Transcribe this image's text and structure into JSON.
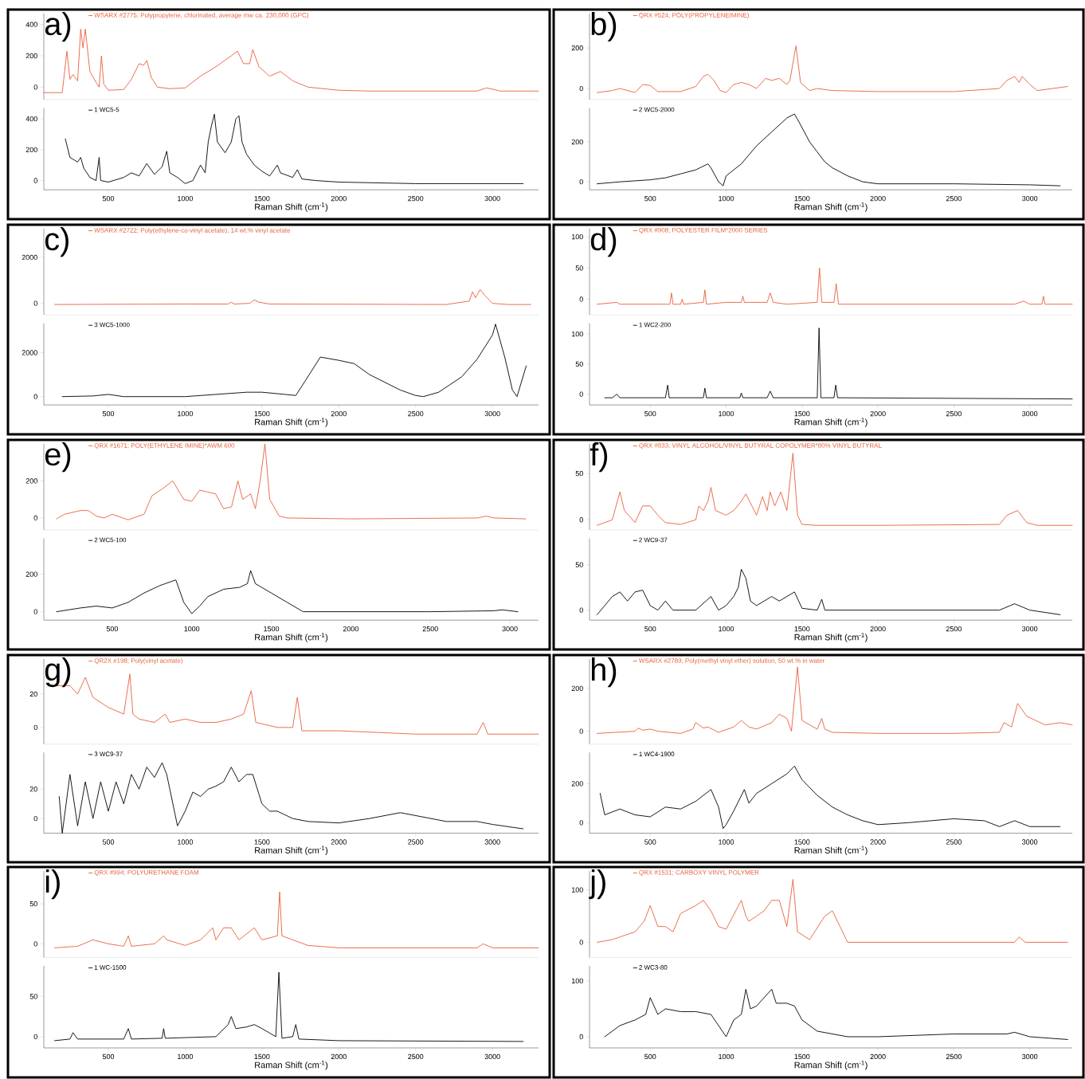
{
  "chart_data": [
    {
      "type": "line",
      "annotations": [
        "a)"
      ],
      "legend": "top left",
      "tick_labels": "y",
      "xlim": [
        80,
        3300
      ],
      "ylim": [
        -80,
        470
      ],
      "yticks": [
        0,
        200,
        400
      ],
      "x": [
        80,
        200,
        230,
        250,
        270,
        300,
        320,
        335,
        350,
        380,
        420,
        440,
        455,
        470,
        500,
        600,
        650,
        700,
        730,
        750,
        780,
        820,
        900,
        1000,
        1100,
        1200,
        1300,
        1340,
        1380,
        1420,
        1440,
        1480,
        1550,
        1620,
        1700,
        1800,
        2000,
        2200,
        2500,
        2900,
        2960,
        3010,
        3050,
        3300
      ],
      "series": [
        {
          "name": "WSARX #2775; Polypropylene, chlorinated, average mw ca. 230,000 (GPC)",
          "color": "#e8603c",
          "values": [
            -35,
            -35,
            230,
            50,
            80,
            40,
            370,
            250,
            370,
            100,
            30,
            0,
            200,
            20,
            -20,
            -15,
            50,
            150,
            140,
            170,
            60,
            0,
            -10,
            -5,
            70,
            130,
            200,
            230,
            150,
            150,
            240,
            130,
            70,
            100,
            40,
            0,
            -20,
            -25,
            -25,
            -25,
            -5,
            -15,
            -25,
            -25
          ]
        }
      ]
    },
    {
      "type": "line",
      "legend": "top left",
      "xlabel": "Raman Shift (cm$^{-1}$)",
      "xlim": [
        80,
        3300
      ],
      "xticks": [
        500,
        1000,
        1500,
        2000,
        2500,
        3000
      ],
      "ylim": [
        -60,
        470
      ],
      "yticks": [
        0,
        200,
        400
      ],
      "x": [
        220,
        250,
        300,
        320,
        340,
        380,
        420,
        440,
        450,
        500,
        600,
        650,
        700,
        750,
        800,
        850,
        880,
        900,
        950,
        1000,
        1050,
        1100,
        1130,
        1150,
        1170,
        1190,
        1210,
        1260,
        1300,
        1330,
        1350,
        1370,
        1400,
        1450,
        1500,
        1550,
        1600,
        1620,
        1700,
        1730,
        1760,
        1850,
        2000,
        2500,
        3000,
        3200
      ],
      "series": [
        {
          "name": "1 WC5-5",
          "color": "#000000",
          "values": [
            270,
            150,
            120,
            150,
            80,
            20,
            0,
            150,
            0,
            -10,
            20,
            50,
            30,
            110,
            40,
            90,
            190,
            50,
            20,
            -20,
            0,
            100,
            50,
            250,
            350,
            430,
            250,
            180,
            250,
            400,
            420,
            250,
            170,
            100,
            60,
            30,
            100,
            50,
            20,
            70,
            10,
            0,
            -10,
            -20,
            -20,
            -20
          ]
        }
      ]
    },
    {
      "type": "line",
      "annotations": [
        "b)"
      ],
      "legend": "top left",
      "tick_labels": "y",
      "xlim": [
        100,
        3280
      ],
      "ylim": [
        -55,
        370
      ],
      "yticks": [
        0,
        200
      ],
      "x": [
        150,
        250,
        300,
        400,
        450,
        500,
        550,
        700,
        800,
        850,
        880,
        920,
        960,
        1000,
        1050,
        1100,
        1150,
        1200,
        1260,
        1300,
        1350,
        1400,
        1420,
        1460,
        1490,
        1550,
        1600,
        1700,
        2000,
        2500,
        2800,
        2850,
        2900,
        2930,
        2950,
        3000,
        3050,
        3250
      ],
      "series": [
        {
          "name": "QRX #524; POLY(PROPYLENEIMINE)",
          "color": "#e8603c",
          "values": [
            -20,
            -10,
            0,
            -20,
            20,
            15,
            -15,
            -15,
            10,
            60,
            70,
            40,
            -10,
            -20,
            20,
            30,
            20,
            0,
            50,
            40,
            50,
            20,
            40,
            210,
            30,
            -10,
            0,
            -10,
            -15,
            -15,
            0,
            40,
            60,
            30,
            60,
            20,
            -10,
            10
          ]
        }
      ]
    },
    {
      "type": "line",
      "legend": "top left",
      "xlabel": "Raman Shift (cm$^{-1}$)",
      "xlim": [
        100,
        3280
      ],
      "xticks": [
        500,
        1000,
        1500,
        2000,
        2500,
        3000
      ],
      "ylim": [
        -40,
        370
      ],
      "yticks": [
        0,
        200
      ],
      "x": [
        150,
        300,
        500,
        600,
        700,
        800,
        880,
        900,
        950,
        980,
        1000,
        1100,
        1200,
        1300,
        1400,
        1450,
        1480,
        1550,
        1600,
        1650,
        1700,
        1800,
        1900,
        2000,
        2500,
        3000,
        3200
      ],
      "series": [
        {
          "name": "2 WC5-2000",
          "color": "#000000",
          "values": [
            -10,
            0,
            10,
            20,
            40,
            60,
            90,
            70,
            0,
            -20,
            30,
            90,
            180,
            250,
            320,
            340,
            300,
            200,
            150,
            100,
            70,
            30,
            0,
            -10,
            -10,
            -15,
            -20
          ]
        }
      ]
    },
    {
      "type": "line",
      "annotations": [
        "c)"
      ],
      "legend": "top left",
      "tick_labels": "y",
      "xlim": [
        80,
        3300
      ],
      "ylim": [
        -500,
        3250
      ],
      "yticks": [
        0,
        2000
      ],
      "x": [
        150,
        1000,
        1280,
        1300,
        1320,
        1420,
        1450,
        1480,
        1550,
        2700,
        2850,
        2870,
        2890,
        2920,
        2950,
        3000,
        3100,
        3250
      ],
      "series": [
        {
          "name": "WSARX #2722; Poly(ethylene-co-vinyl acetate), 14 wt.% vinyl acetate",
          "color": "#e8603c",
          "values": [
            -50,
            -30,
            -30,
            50,
            -30,
            0,
            150,
            50,
            -30,
            -50,
            100,
            500,
            250,
            600,
            350,
            0,
            -50,
            -50
          ]
        }
      ]
    },
    {
      "type": "line",
      "legend": "top left",
      "xlabel": "Raman Shift (cm$^{-1}$)",
      "xlim": [
        80,
        3300
      ],
      "xticks": [
        500,
        1000,
        1500,
        2000,
        2500,
        3000
      ],
      "ylim": [
        -380,
        3340
      ],
      "yticks": [
        0,
        2000
      ],
      "x": [
        200,
        400,
        500,
        600,
        1000,
        1200,
        1400,
        1500,
        1650,
        1720,
        1780,
        1880,
        2000,
        2100,
        2200,
        2400,
        2500,
        2550,
        2650,
        2800,
        2900,
        3000,
        3020,
        3080,
        3130,
        3160,
        3220
      ],
      "series": [
        {
          "name": "3 WC5-1000",
          "color": "#000000",
          "values": [
            0,
            30,
            100,
            0,
            0,
            100,
            200,
            200,
            100,
            50,
            700,
            1800,
            1650,
            1500,
            1000,
            300,
            50,
            0,
            200,
            900,
            1700,
            2800,
            3300,
            1800,
            300,
            0,
            1400
          ]
        }
      ]
    },
    {
      "type": "line",
      "annotations": [
        "d)"
      ],
      "legend": "top left",
      "tick_labels": "y",
      "xlim": [
        100,
        3280
      ],
      "ylim": [
        -25,
        113
      ],
      "yticks": [
        0,
        50,
        100
      ],
      "x": [
        150,
        280,
        300,
        630,
        640,
        650,
        700,
        710,
        720,
        850,
        860,
        870,
        1000,
        1100,
        1110,
        1120,
        1270,
        1290,
        1310,
        1400,
        1600,
        1615,
        1630,
        1710,
        1725,
        1740,
        2900,
        2960,
        3000,
        3080,
        3090,
        3100,
        3280
      ],
      "series": [
        {
          "name": "QRX #908; POLYESTER FILM*2000 SERIES",
          "color": "#e8603c",
          "values": [
            -8,
            -5,
            -8,
            -8,
            10,
            -8,
            -8,
            0,
            -8,
            -5,
            15,
            -8,
            -5,
            -5,
            5,
            -5,
            -5,
            10,
            -5,
            -8,
            -5,
            50,
            -5,
            -5,
            25,
            -8,
            -8,
            -3,
            -8,
            -8,
            5,
            -8,
            -8
          ]
        }
      ]
    },
    {
      "type": "line",
      "legend": "top left",
      "xlabel": "Raman Shift (cm$^{-1}$)",
      "xlim": [
        100,
        3280
      ],
      "xticks": [
        500,
        1000,
        1500,
        2000,
        2500,
        3000
      ],
      "ylim": [
        -18,
        118
      ],
      "yticks": [
        0,
        50,
        100
      ],
      "x": [
        200,
        250,
        280,
        300,
        600,
        615,
        625,
        850,
        860,
        870,
        1090,
        1100,
        1110,
        1270,
        1290,
        1310,
        1600,
        1612,
        1624,
        1710,
        1722,
        1734,
        3280
      ],
      "series": [
        {
          "name": "1 WC2-200",
          "color": "#000000",
          "values": [
            -6,
            -6,
            0,
            -6,
            -6,
            15,
            -6,
            -6,
            10,
            -6,
            -6,
            2,
            -6,
            -6,
            5,
            -6,
            -6,
            110,
            -6,
            -6,
            15,
            -6,
            -8
          ]
        }
      ]
    },
    {
      "type": "line",
      "annotations": [
        "e)"
      ],
      "legend": "top left",
      "tick_labels": "y",
      "xlim": [
        70,
        3180
      ],
      "ylim": [
        -65,
        400
      ],
      "yticks": [
        0,
        200
      ],
      "x": [
        150,
        200,
        300,
        350,
        400,
        450,
        500,
        600,
        700,
        750,
        820,
        880,
        950,
        1000,
        1050,
        1100,
        1150,
        1200,
        1250,
        1290,
        1320,
        1370,
        1400,
        1430,
        1460,
        1490,
        1550,
        1600,
        2000,
        2800,
        2850,
        2900,
        3100
      ],
      "series": [
        {
          "name": "QRX #1671; POLY(ETHYLENE IMINE)*AWM 600",
          "color": "#e8603c",
          "values": [
            -5,
            20,
            40,
            40,
            10,
            0,
            20,
            -10,
            20,
            120,
            160,
            200,
            100,
            90,
            150,
            140,
            130,
            50,
            60,
            200,
            100,
            130,
            50,
            200,
            400,
            100,
            10,
            0,
            -5,
            0,
            10,
            0,
            -5
          ]
        }
      ]
    },
    {
      "type": "line",
      "legend": "top left",
      "xlabel": "Raman Shift (cm$^{-1}$)",
      "xlim": [
        70,
        3180
      ],
      "xticks": [
        500,
        1000,
        1500,
        2000,
        2500,
        3000
      ],
      "ylim": [
        -45,
        392
      ],
      "yticks": [
        0,
        200
      ],
      "x": [
        150,
        300,
        400,
        500,
        600,
        700,
        800,
        900,
        950,
        1000,
        1050,
        1100,
        1200,
        1300,
        1350,
        1370,
        1400,
        1500,
        1600,
        1700,
        2000,
        2500,
        2900,
        2950,
        3050
      ],
      "series": [
        {
          "name": "2 WC5-100",
          "color": "#000000",
          "values": [
            0,
            20,
            30,
            20,
            50,
            100,
            140,
            170,
            50,
            -10,
            30,
            80,
            120,
            130,
            150,
            220,
            150,
            100,
            50,
            0,
            0,
            0,
            5,
            10,
            0
          ]
        }
      ]
    },
    {
      "type": "line",
      "annotations": [
        "f)"
      ],
      "legend": "top left",
      "tick_labels": "y",
      "xlim": [
        100,
        3280
      ],
      "ylim": [
        -11,
        82
      ],
      "yticks": [
        0,
        50
      ],
      "x": [
        150,
        250,
        300,
        330,
        400,
        450,
        500,
        550,
        600,
        700,
        800,
        820,
        850,
        880,
        900,
        930,
        1000,
        1050,
        1100,
        1130,
        1200,
        1240,
        1270,
        1290,
        1320,
        1360,
        1400,
        1440,
        1470,
        1500,
        1600,
        2000,
        2800,
        2850,
        2920,
        2980,
        3050,
        3280
      ],
      "series": [
        {
          "name": "QRX #833; VINYL ALCOHOL/VINYL BUTYRAL COPOLYMER*80% VINYL BUTYRAL",
          "color": "#e8603c",
          "values": [
            -6,
            0,
            30,
            10,
            -3,
            15,
            15,
            5,
            -3,
            -5,
            0,
            15,
            10,
            20,
            35,
            10,
            5,
            10,
            20,
            28,
            5,
            25,
            10,
            30,
            15,
            30,
            10,
            72,
            5,
            -5,
            -6,
            -6,
            -5,
            5,
            10,
            -3,
            -6,
            -6
          ]
        }
      ]
    },
    {
      "type": "line",
      "legend": "top left",
      "xlabel": "Raman Shift (cm$^{-1}$)",
      "xlim": [
        100,
        3280
      ],
      "xticks": [
        500,
        1000,
        1500,
        2000,
        2500,
        3000
      ],
      "ylim": [
        -11,
        79
      ],
      "yticks": [
        0,
        50
      ],
      "x": [
        150,
        200,
        250,
        300,
        350,
        400,
        450,
        500,
        550,
        600,
        650,
        800,
        900,
        950,
        1000,
        1050,
        1080,
        1100,
        1130,
        1160,
        1200,
        1250,
        1300,
        1350,
        1400,
        1450,
        1500,
        1600,
        1630,
        1650,
        2000,
        2800,
        2900,
        3000,
        3200
      ],
      "series": [
        {
          "name": "2 WC9-37",
          "color": "#000000",
          "values": [
            -5,
            5,
            15,
            20,
            10,
            20,
            22,
            5,
            0,
            10,
            0,
            0,
            15,
            0,
            5,
            15,
            25,
            45,
            35,
            10,
            5,
            10,
            15,
            10,
            15,
            20,
            2,
            0,
            12,
            0,
            0,
            0,
            7,
            0,
            -5
          ]
        }
      ]
    },
    {
      "type": "line",
      "annotations": [
        "g)"
      ],
      "legend": "top left",
      "tick_labels": "y",
      "xlim": [
        80,
        3300
      ],
      "ylim": [
        -10,
        41
      ],
      "yticks": [
        0,
        20
      ],
      "x": [
        160,
        250,
        300,
        350,
        400,
        500,
        600,
        620,
        640,
        660,
        700,
        800,
        870,
        900,
        1000,
        1100,
        1200,
        1300,
        1380,
        1430,
        1460,
        1600,
        1700,
        1730,
        1760,
        2000,
        2500,
        2900,
        2940,
        2970,
        3300
      ],
      "series": [
        {
          "name": "QR2X #198; Poly(vinyl acetate)",
          "color": "#e8603c",
          "values": [
            25,
            25,
            20,
            30,
            18,
            12,
            8,
            20,
            32,
            8,
            5,
            3,
            8,
            3,
            5,
            3,
            3,
            5,
            8,
            22,
            3,
            0,
            0,
            18,
            -2,
            -2,
            -4,
            -4,
            3,
            -4,
            -4
          ]
        }
      ]
    },
    {
      "type": "line",
      "legend": "top left",
      "xlabel": "Raman Shift (cm$^{-1}$)",
      "xlim": [
        80,
        3300
      ],
      "xticks": [
        500,
        1000,
        1500,
        2000,
        2500,
        3000
      ],
      "ylim": [
        -10,
        45
      ],
      "yticks": [
        0,
        20
      ],
      "x": [
        180,
        200,
        250,
        300,
        350,
        400,
        450,
        500,
        550,
        600,
        650,
        700,
        750,
        800,
        850,
        880,
        900,
        950,
        1000,
        1050,
        1100,
        1150,
        1200,
        1250,
        1300,
        1350,
        1400,
        1440,
        1500,
        1550,
        1600,
        1700,
        1800,
        2000,
        2200,
        2400,
        2500,
        2700,
        2900,
        3000,
        3200
      ],
      "series": [
        {
          "name": "3 WC9-37",
          "color": "#000000",
          "values": [
            15,
            -10,
            30,
            -5,
            25,
            0,
            25,
            5,
            25,
            10,
            30,
            20,
            35,
            28,
            38,
            30,
            20,
            -5,
            5,
            18,
            15,
            20,
            22,
            25,
            35,
            25,
            30,
            30,
            10,
            5,
            5,
            0,
            -2,
            -3,
            0,
            4,
            2,
            -2,
            -2,
            -4,
            -7
          ]
        }
      ]
    },
    {
      "type": "line",
      "annotations": [
        "h)"
      ],
      "legend": "top left",
      "tick_labels": "y",
      "xlim": [
        100,
        3280
      ],
      "ylim": [
        -60,
        337
      ],
      "yticks": [
        0,
        200
      ],
      "x": [
        150,
        400,
        420,
        450,
        500,
        550,
        700,
        780,
        800,
        850,
        880,
        950,
        1050,
        1100,
        1150,
        1200,
        1300,
        1350,
        1400,
        1430,
        1470,
        1500,
        1600,
        1630,
        1650,
        1700,
        2000,
        2500,
        2800,
        2830,
        2880,
        2920,
        2980,
        3100,
        3200,
        3280
      ],
      "series": [
        {
          "name": "WSARX #2789; Poly(methyl vinyl ether) solution, 50 wt.% in water",
          "color": "#e8603c",
          "values": [
            -10,
            0,
            15,
            5,
            10,
            0,
            -10,
            10,
            40,
            15,
            20,
            -5,
            20,
            50,
            20,
            10,
            40,
            80,
            60,
            0,
            300,
            50,
            10,
            60,
            10,
            -5,
            -10,
            -10,
            -5,
            40,
            20,
            130,
            70,
            30,
            40,
            30
          ]
        }
      ]
    },
    {
      "type": "line",
      "legend": "top left",
      "xlabel": "Raman Shift (cm$^{-1}$)",
      "xlim": [
        100,
        3280
      ],
      "xticks": [
        500,
        1000,
        1500,
        2000,
        2500,
        3000
      ],
      "ylim": [
        -54,
        360
      ],
      "yticks": [
        0,
        200
      ],
      "x": [
        170,
        200,
        300,
        400,
        500,
        600,
        700,
        800,
        850,
        900,
        950,
        980,
        1000,
        1050,
        1120,
        1150,
        1200,
        1300,
        1400,
        1450,
        1500,
        1600,
        1700,
        1800,
        1900,
        2000,
        2200,
        2500,
        2700,
        2800,
        2900,
        3000,
        3200
      ],
      "series": [
        {
          "name": "1 WC4-1900",
          "color": "#000000",
          "values": [
            150,
            40,
            70,
            40,
            30,
            80,
            70,
            110,
            140,
            170,
            80,
            -30,
            -10,
            60,
            170,
            100,
            150,
            200,
            250,
            290,
            220,
            140,
            80,
            40,
            10,
            -10,
            0,
            20,
            10,
            -20,
            10,
            -20,
            -20
          ]
        }
      ]
    },
    {
      "type": "line",
      "annotations": [
        "i)"
      ],
      "legend": "top left",
      "tick_labels": "y",
      "xlim": [
        80,
        3300
      ],
      "ylim": [
        -17,
        91
      ],
      "yticks": [
        0,
        50
      ],
      "x": [
        150,
        300,
        400,
        500,
        600,
        630,
        650,
        800,
        860,
        880,
        1000,
        1100,
        1180,
        1200,
        1250,
        1300,
        1350,
        1450,
        1500,
        1600,
        1615,
        1630,
        1700,
        1800,
        2000,
        2900,
        2940,
        3000,
        3300
      ],
      "series": [
        {
          "name": "QRX #994; POLYURETHANE FOAM",
          "color": "#e8603c",
          "values": [
            -5,
            -3,
            5,
            0,
            -3,
            10,
            -3,
            0,
            10,
            5,
            -2,
            5,
            20,
            5,
            20,
            20,
            5,
            20,
            5,
            10,
            65,
            10,
            5,
            -2,
            -5,
            -5,
            0,
            -5,
            -5
          ]
        }
      ]
    },
    {
      "type": "line",
      "legend": "top left",
      "xlabel": "Raman Shift (cm$^{-1}$)",
      "xlim": [
        80,
        3300
      ],
      "xticks": [
        500,
        1000,
        1500,
        2000,
        2500,
        3000
      ],
      "ylim": [
        -14,
        88
      ],
      "yticks": [
        0,
        50
      ],
      "x": [
        150,
        250,
        270,
        300,
        600,
        630,
        650,
        850,
        860,
        870,
        1200,
        1280,
        1300,
        1330,
        1400,
        1450,
        1500,
        1590,
        1610,
        1630,
        1700,
        1720,
        1740,
        2000,
        3200
      ],
      "series": [
        {
          "name": "1 WC-1500",
          "color": "#000000",
          "values": [
            -5,
            -3,
            5,
            -3,
            -3,
            10,
            -3,
            -2,
            10,
            -2,
            0,
            15,
            25,
            10,
            12,
            15,
            10,
            0,
            80,
            -2,
            0,
            15,
            -3,
            -5,
            -6
          ]
        }
      ]
    },
    {
      "type": "line",
      "annotations": [
        "j)"
      ],
      "legend": "top left",
      "tick_labels": "y",
      "xlim": [
        100,
        3280
      ],
      "ylim": [
        -29,
        136
      ],
      "yticks": [
        0,
        100
      ],
      "x": [
        150,
        250,
        300,
        400,
        460,
        500,
        550,
        600,
        650,
        700,
        800,
        850,
        900,
        950,
        1000,
        1100,
        1130,
        1150,
        1200,
        1250,
        1300,
        1350,
        1400,
        1440,
        1470,
        1550,
        1650,
        1700,
        1750,
        1800,
        2000,
        2900,
        2930,
        2970,
        3250
      ],
      "series": [
        {
          "name": "QRX #1531; CARBOXY VINYL POLYMER",
          "color": "#e8603c",
          "values": [
            0,
            5,
            10,
            20,
            40,
            70,
            30,
            30,
            20,
            55,
            70,
            80,
            60,
            30,
            25,
            80,
            50,
            40,
            50,
            60,
            80,
            80,
            30,
            120,
            20,
            5,
            50,
            60,
            30,
            0,
            0,
            0,
            10,
            0,
            0
          ]
        }
      ]
    },
    {
      "type": "line",
      "legend": "top left",
      "xlabel": "Raman Shift (cm$^{-1}$)",
      "xlim": [
        100,
        3280
      ],
      "xticks": [
        500,
        1000,
        1500,
        2000,
        2500,
        3000
      ],
      "ylim": [
        -20,
        127
      ],
      "yticks": [
        0,
        100
      ],
      "x": [
        200,
        300,
        400,
        470,
        500,
        550,
        600,
        700,
        800,
        900,
        950,
        1000,
        1050,
        1100,
        1130,
        1160,
        1200,
        1300,
        1330,
        1400,
        1450,
        1500,
        1600,
        1700,
        1800,
        2000,
        2500,
        2850,
        2900,
        3000,
        3250
      ],
      "series": [
        {
          "name": "2 WC3-80",
          "color": "#000000",
          "values": [
            0,
            20,
            30,
            40,
            70,
            40,
            50,
            45,
            45,
            40,
            20,
            0,
            30,
            40,
            85,
            50,
            55,
            85,
            60,
            60,
            55,
            30,
            10,
            5,
            0,
            0,
            5,
            5,
            8,
            0,
            -5
          ]
        }
      ]
    }
  ]
}
